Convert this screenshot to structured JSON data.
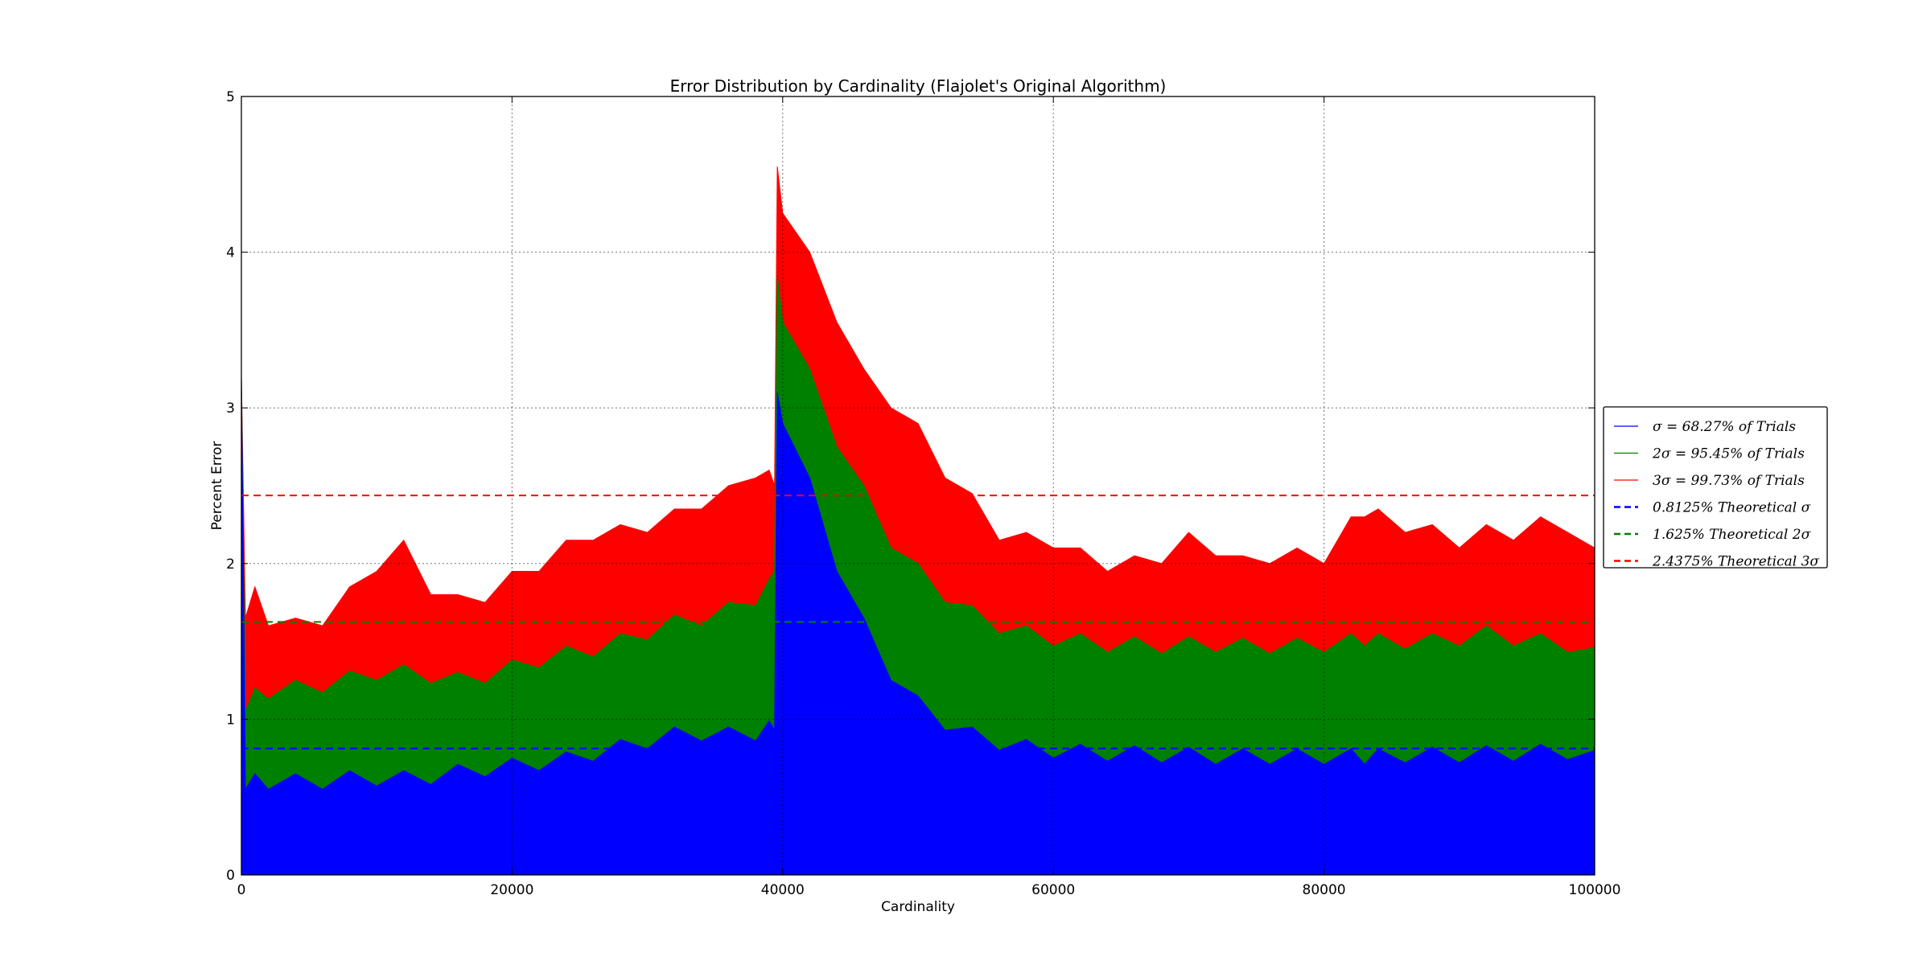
{
  "chart_data": {
    "type": "area",
    "title": "Error Distribution by Cardinality (Flajolet's Original Algorithm)",
    "xlabel": "Cardinality",
    "ylabel": "Percent Error",
    "xlim": [
      0,
      100000
    ],
    "ylim": [
      0,
      5
    ],
    "xticks": [
      "0",
      "20000",
      "40000",
      "60000",
      "80000",
      "100000"
    ],
    "yticks": [
      "0",
      "1",
      "2",
      "3",
      "4",
      "5"
    ],
    "grid": true,
    "legend_position": "center-right, outside plot",
    "x": [
      0,
      300,
      1000,
      2000,
      4000,
      6000,
      8000,
      10000,
      12000,
      14000,
      16000,
      18000,
      20000,
      22000,
      24000,
      26000,
      28000,
      30000,
      32000,
      34000,
      36000,
      38000,
      39000,
      39400,
      39600,
      40000,
      42000,
      44000,
      46000,
      48000,
      50000,
      52000,
      54000,
      56000,
      58000,
      60000,
      62000,
      64000,
      66000,
      68000,
      70000,
      72000,
      74000,
      76000,
      78000,
      80000,
      82000,
      83000,
      84000,
      86000,
      88000,
      90000,
      92000,
      94000,
      96000,
      98000,
      100000
    ],
    "series": [
      {
        "name": "σ = 68.27% of Trials",
        "color": "#0000ff",
        "values": [
          3.2,
          0.6,
          0.6,
          0.6,
          0.6,
          0.6,
          0.62,
          0.62,
          0.62,
          0.63,
          0.66,
          0.68,
          0.7,
          0.72,
          0.74,
          0.78,
          0.82,
          0.86,
          0.9,
          0.91,
          0.9,
          0.91,
          0.94,
          0.98,
          3.05,
          2.95,
          2.5,
          2.0,
          1.6,
          1.3,
          1.1,
          0.98,
          0.9,
          0.85,
          0.82,
          0.8,
          0.79,
          0.78,
          0.78,
          0.77,
          0.77,
          0.76,
          0.76,
          0.76,
          0.76,
          0.76,
          0.76,
          0.76,
          0.76,
          0.77,
          0.77,
          0.77,
          0.78,
          0.78,
          0.79,
          0.79,
          0.8
        ]
      },
      {
        "name": "2σ = 95.45% of Trials",
        "color": "#008000",
        "values": [
          3.2,
          1.1,
          1.15,
          1.18,
          1.2,
          1.22,
          1.26,
          1.3,
          1.3,
          1.28,
          1.25,
          1.28,
          1.33,
          1.38,
          1.42,
          1.45,
          1.5,
          1.56,
          1.62,
          1.65,
          1.7,
          1.78,
          1.85,
          2.0,
          3.8,
          3.6,
          3.2,
          2.8,
          2.45,
          2.15,
          1.95,
          1.8,
          1.68,
          1.6,
          1.55,
          1.52,
          1.5,
          1.48,
          1.48,
          1.47,
          1.48,
          1.48,
          1.47,
          1.47,
          1.47,
          1.48,
          1.5,
          1.52,
          1.5,
          1.5,
          1.5,
          1.52,
          1.55,
          1.52,
          1.5,
          1.48,
          1.46
        ]
      },
      {
        "name": "3σ = 99.73% of Trials",
        "color": "#ff0000",
        "values": [
          3.2,
          1.7,
          1.8,
          1.65,
          1.6,
          1.65,
          1.8,
          2.0,
          2.1,
          1.85,
          1.75,
          1.8,
          1.9,
          2.0,
          2.1,
          2.2,
          2.2,
          2.25,
          2.3,
          2.4,
          2.45,
          2.6,
          2.55,
          2.55,
          4.5,
          4.3,
          3.95,
          3.6,
          3.2,
          3.05,
          2.85,
          2.6,
          2.4,
          2.2,
          2.15,
          2.15,
          2.05,
          2.0,
          2.0,
          2.05,
          2.15,
          2.1,
          2.0,
          2.05,
          2.05,
          2.05,
          2.25,
          2.35,
          2.3,
          2.25,
          2.2,
          2.15,
          2.2,
          2.2,
          2.25,
          2.25,
          2.1
        ]
      }
    ],
    "reference_lines": [
      {
        "name": "0.8125% Theoretical σ",
        "value": 0.8125,
        "color": "#0000ff",
        "style": "dashed"
      },
      {
        "name": "1.625% Theoretical 2σ",
        "value": 1.625,
        "color": "#008000",
        "style": "dashed"
      },
      {
        "name": "2.4375% Theoretical 3σ",
        "value": 2.4375,
        "color": "#ff0000",
        "style": "dashed"
      }
    ]
  }
}
